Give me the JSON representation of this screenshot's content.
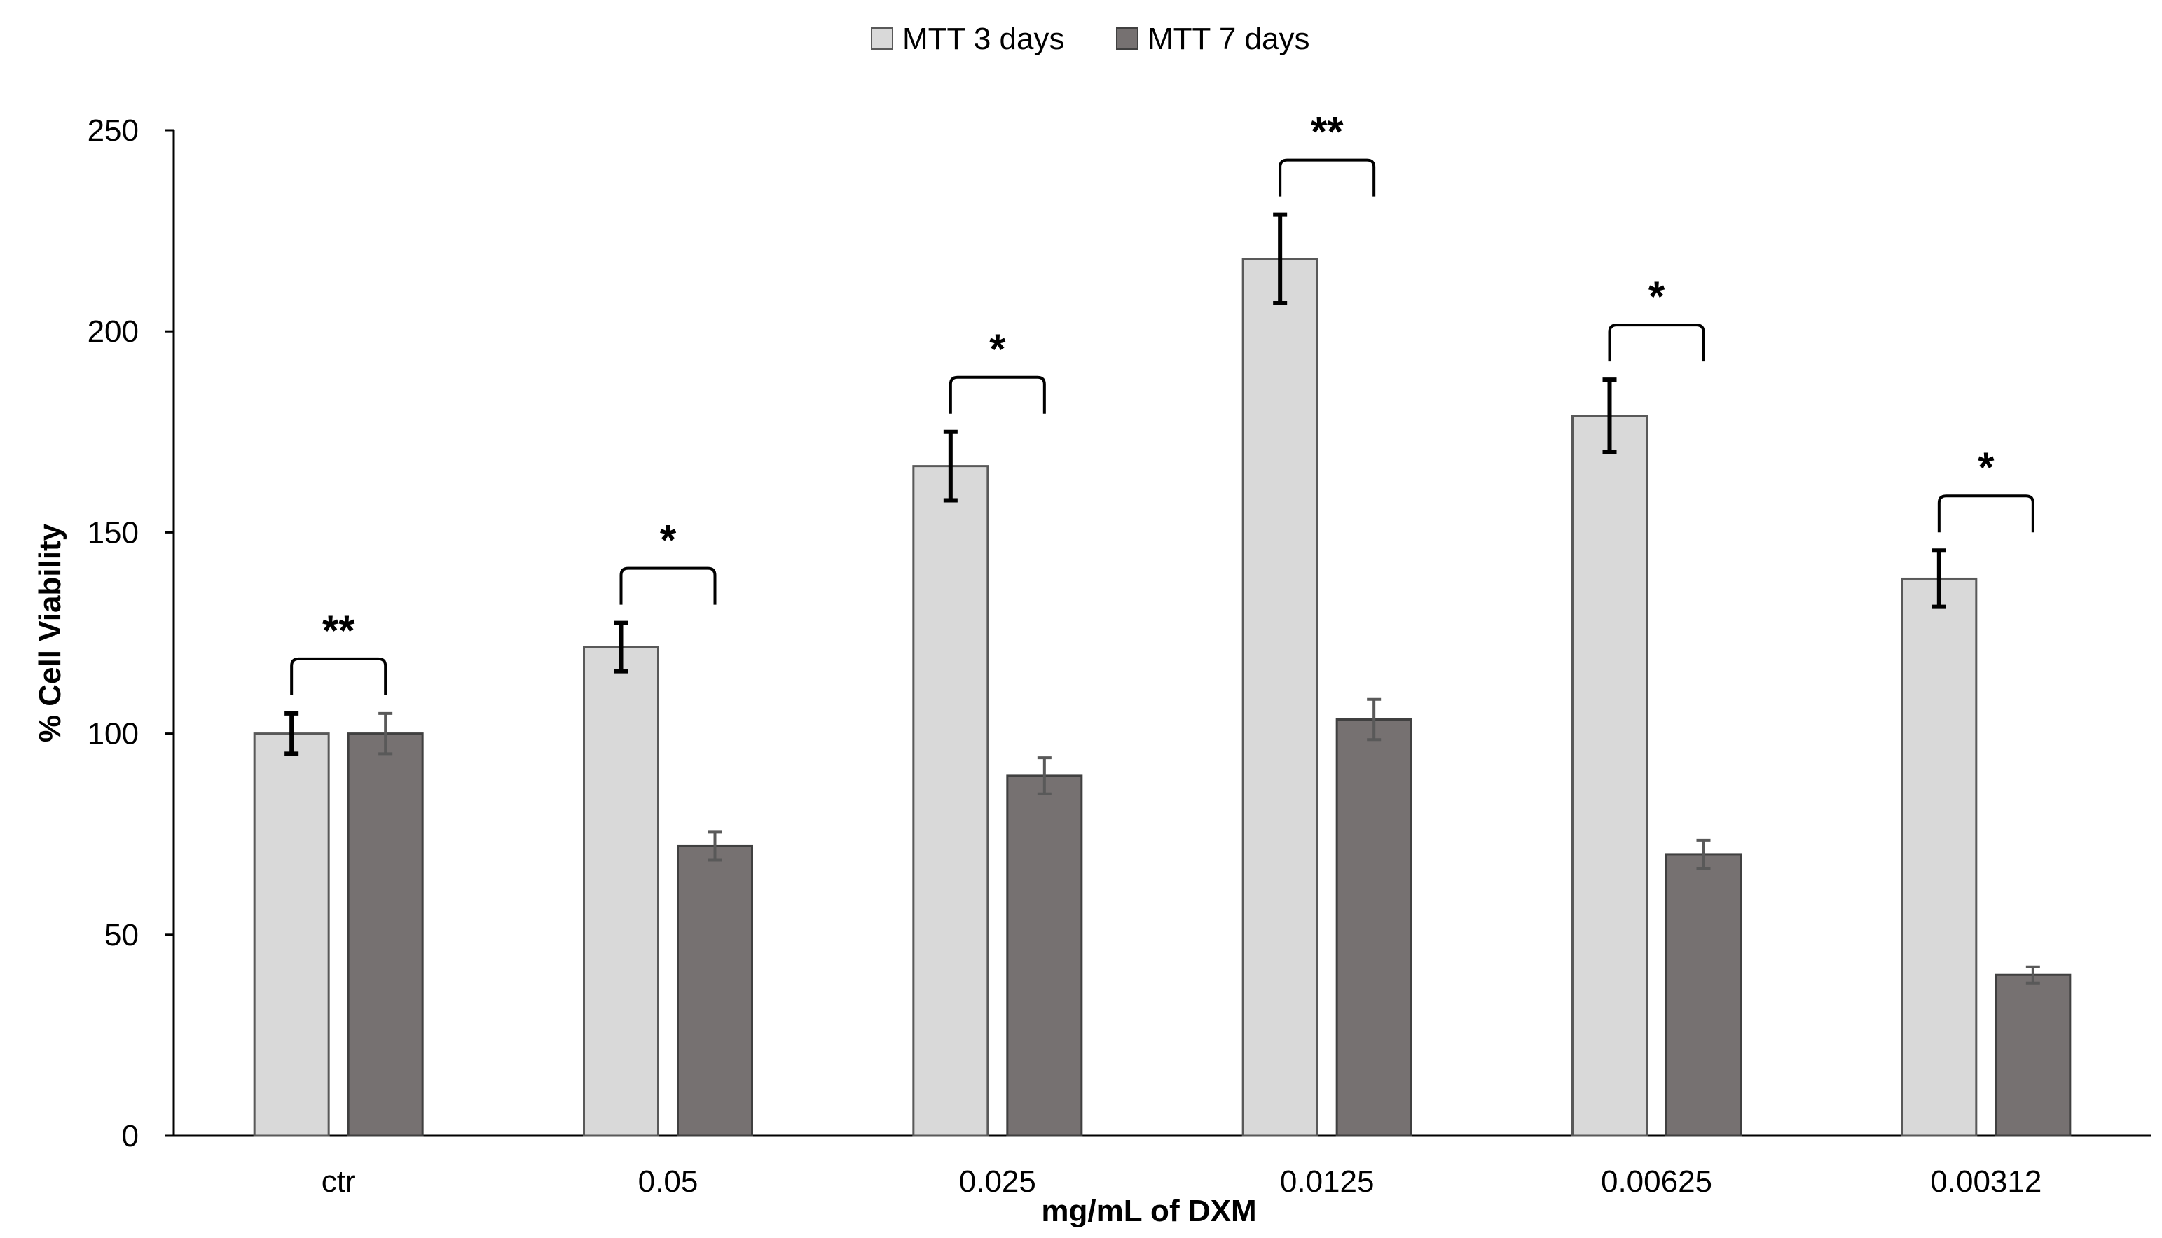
{
  "chart_data": {
    "type": "bar",
    "title": "",
    "xlabel": "mg/mL of DXM",
    "ylabel": "% Cell Viability",
    "ylim": [
      0,
      250
    ],
    "yticks": [
      0,
      50,
      100,
      150,
      200,
      250
    ],
    "grid": false,
    "legend_position": "top-center",
    "categories": [
      "ctr",
      "0.05",
      "0.025",
      "0.0125",
      "0.00625",
      "0.00312"
    ],
    "series": [
      {
        "name": "MTT 3 days",
        "color": "#d9d9d9",
        "values": [
          100,
          121.5,
          166.5,
          218,
          179,
          138.5
        ],
        "errors": [
          5,
          6,
          8.5,
          11,
          9,
          7
        ]
      },
      {
        "name": "MTT 7 days",
        "color": "#767171",
        "values": [
          100,
          72,
          89.5,
          103.5,
          70,
          40
        ],
        "errors": [
          5,
          3.5,
          4.5,
          5,
          3.5,
          2
        ]
      }
    ],
    "significance": [
      "**",
      "*",
      "*",
      "**",
      "*",
      "*"
    ]
  }
}
